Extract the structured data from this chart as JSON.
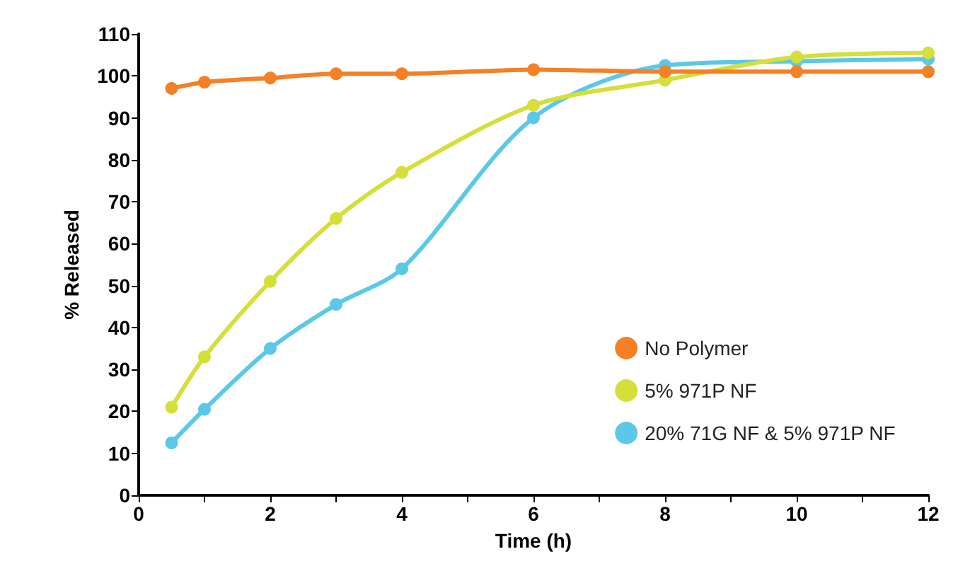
{
  "chart_data": {
    "type": "line",
    "xlabel": "Time (h)",
    "ylabel": "% Released",
    "x": [
      0.5,
      1,
      2,
      3,
      4,
      6,
      8,
      10,
      12
    ],
    "series": [
      {
        "name": "No Polymer",
        "color": "#f58025",
        "values": [
          97,
          98.5,
          99.5,
          100.5,
          100.5,
          101.5,
          101,
          101,
          101
        ]
      },
      {
        "name": "5% 971P NF",
        "color": "#d4df3a",
        "values": [
          21,
          33,
          51,
          66,
          77,
          93,
          99,
          104.5,
          105.5
        ]
      },
      {
        "name": "20% 71G NF & 5% 971P NF",
        "color": "#5bc8e8",
        "values": [
          12.5,
          20.5,
          35,
          45.5,
          54,
          90,
          102.5,
          103.5,
          104
        ]
      }
    ],
    "xlim": [
      0,
      12
    ],
    "xticks": [
      0,
      {
        "value": 1,
        "label": null
      },
      2,
      {
        "value": 3,
        "label": null
      },
      4,
      {
        "value": 5,
        "label": null
      },
      6,
      {
        "value": 7,
        "label": null
      },
      8,
      {
        "value": 9,
        "label": null
      },
      10,
      {
        "value": 11,
        "label": null
      },
      12
    ],
    "ylim": [
      0,
      110
    ],
    "yticks": [
      0,
      10,
      20,
      30,
      40,
      50,
      60,
      70,
      80,
      90,
      100,
      110
    ],
    "grid": false,
    "legend": "right",
    "marker": "circle",
    "line_style": "solid"
  }
}
